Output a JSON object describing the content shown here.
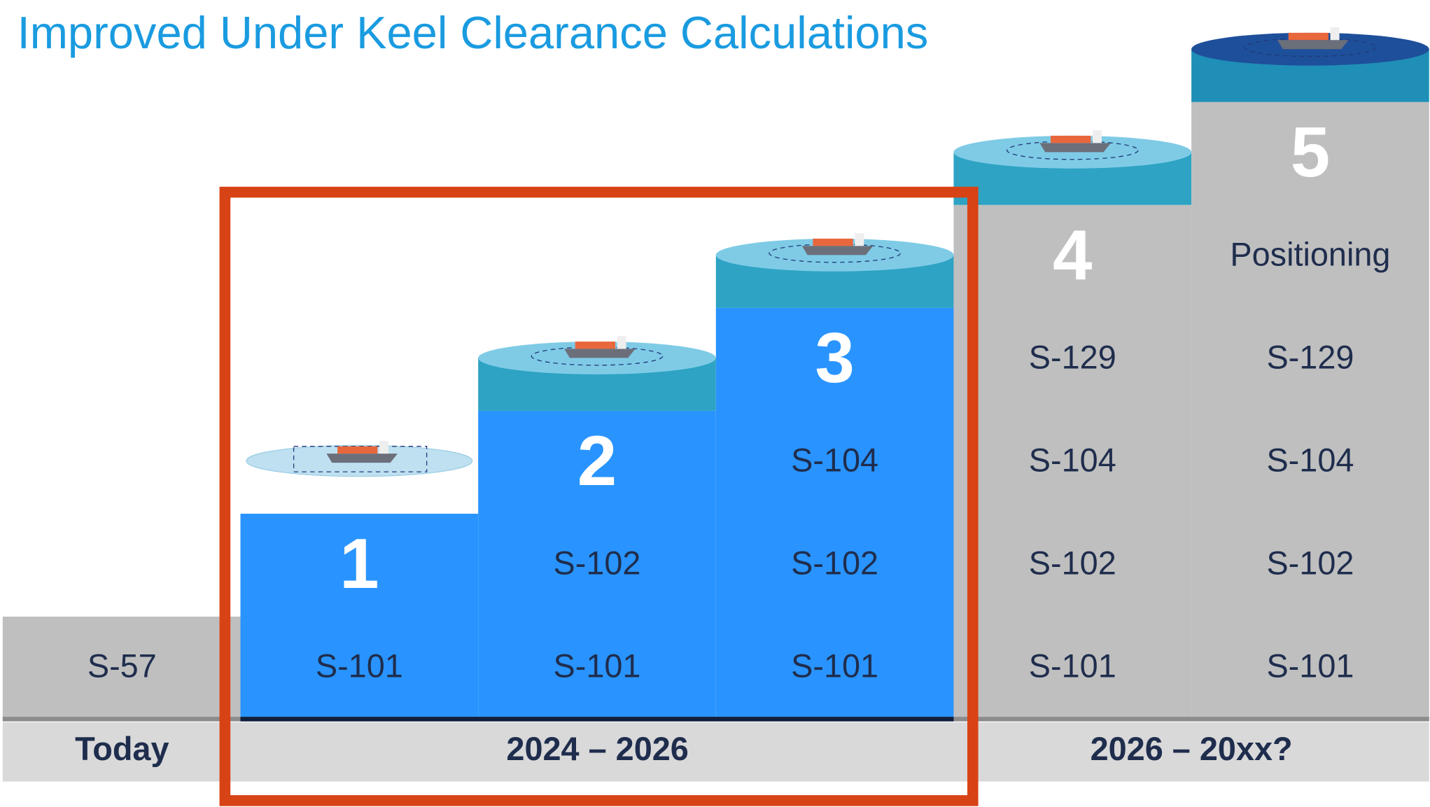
{
  "title": "Improved Under Keel Clearance Calculations",
  "baseline": {
    "products": [
      "S-57"
    ]
  },
  "steps": [
    {
      "number": "1",
      "products": [
        "S-101"
      ]
    },
    {
      "number": "2",
      "products": [
        "S-101",
        "S-102"
      ]
    },
    {
      "number": "3",
      "products": [
        "S-101",
        "S-102",
        "S-104"
      ]
    },
    {
      "number": "4",
      "products": [
        "S-101",
        "S-102",
        "S-104",
        "S-129"
      ]
    },
    {
      "number": "5",
      "label": "Positioning",
      "products": [
        "S-101",
        "S-102",
        "S-104",
        "S-129"
      ]
    }
  ],
  "periods": [
    "Today",
    "2024 – 2026",
    "2026 – 20xx?"
  ]
}
